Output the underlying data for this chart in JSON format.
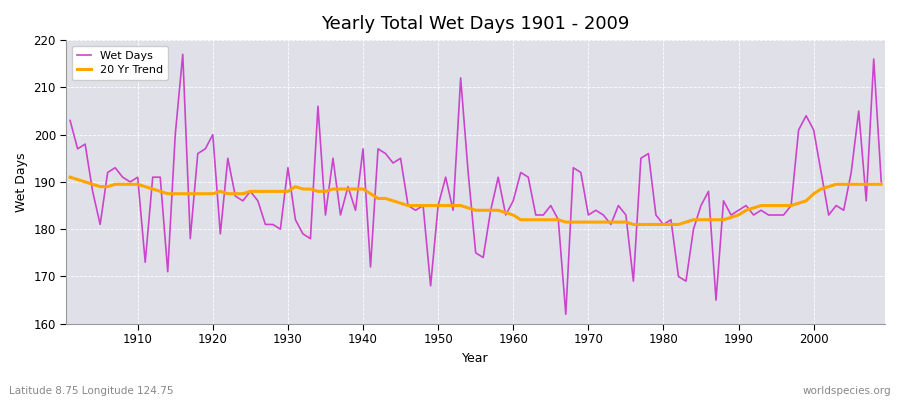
{
  "title": "Yearly Total Wet Days 1901 - 2009",
  "xlabel": "Year",
  "ylabel": "Wet Days",
  "subtitle": "Latitude 8.75 Longitude 124.75",
  "watermark": "worldspecies.org",
  "line_color": "#CC44CC",
  "trend_color": "#FFA500",
  "bg_color": "#E0E0E8",
  "fig_bg_color": "#FFFFFF",
  "ylim": [
    160,
    220
  ],
  "xlim": [
    1901,
    2009
  ],
  "years": [
    1901,
    1902,
    1903,
    1904,
    1905,
    1906,
    1907,
    1908,
    1909,
    1910,
    1911,
    1912,
    1913,
    1914,
    1915,
    1916,
    1917,
    1918,
    1919,
    1920,
    1921,
    1922,
    1923,
    1924,
    1925,
    1926,
    1927,
    1928,
    1929,
    1930,
    1931,
    1932,
    1933,
    1934,
    1935,
    1936,
    1937,
    1938,
    1939,
    1940,
    1941,
    1942,
    1943,
    1944,
    1945,
    1946,
    1947,
    1948,
    1949,
    1950,
    1951,
    1952,
    1953,
    1954,
    1955,
    1956,
    1957,
    1958,
    1959,
    1960,
    1961,
    1962,
    1963,
    1964,
    1965,
    1966,
    1967,
    1968,
    1969,
    1970,
    1971,
    1972,
    1973,
    1974,
    1975,
    1976,
    1977,
    1978,
    1979,
    1980,
    1981,
    1982,
    1983,
    1984,
    1985,
    1986,
    1987,
    1988,
    1989,
    1990,
    1991,
    1992,
    1993,
    1994,
    1995,
    1996,
    1997,
    1998,
    1999,
    2000,
    2001,
    2002,
    2003,
    2004,
    2005,
    2006,
    2007,
    2008,
    2009
  ],
  "wet_days": [
    203,
    197,
    198,
    188,
    181,
    192,
    193,
    191,
    190,
    191,
    173,
    191,
    191,
    171,
    200,
    217,
    178,
    196,
    197,
    200,
    179,
    195,
    187,
    186,
    188,
    186,
    181,
    181,
    180,
    193,
    182,
    179,
    178,
    206,
    183,
    195,
    183,
    189,
    184,
    197,
    172,
    197,
    196,
    194,
    195,
    185,
    184,
    185,
    168,
    185,
    191,
    184,
    212,
    192,
    175,
    174,
    184,
    191,
    183,
    186,
    192,
    191,
    183,
    183,
    185,
    182,
    162,
    193,
    192,
    183,
    184,
    183,
    181,
    185,
    183,
    169,
    195,
    196,
    183,
    181,
    182,
    170,
    169,
    180,
    185,
    188,
    165,
    186,
    183,
    184,
    185,
    183,
    184,
    183,
    183,
    183,
    185,
    201,
    204,
    201,
    192,
    183,
    185,
    184,
    192,
    205,
    186,
    216,
    190
  ],
  "trend_values": [
    191.0,
    190.5,
    190.0,
    189.5,
    189.0,
    189.0,
    189.5,
    189.5,
    189.5,
    189.5,
    189.0,
    188.5,
    188.0,
    187.5,
    187.5,
    187.5,
    187.5,
    187.5,
    187.5,
    187.5,
    188.0,
    187.5,
    187.5,
    187.5,
    188.0,
    188.0,
    188.0,
    188.0,
    188.0,
    188.0,
    189.0,
    188.5,
    188.5,
    188.0,
    188.0,
    188.5,
    188.5,
    188.5,
    188.5,
    188.5,
    187.5,
    186.5,
    186.5,
    186.0,
    185.5,
    185.0,
    185.0,
    185.0,
    185.0,
    185.0,
    185.0,
    185.0,
    185.0,
    184.5,
    184.0,
    184.0,
    184.0,
    184.0,
    183.5,
    183.0,
    182.0,
    182.0,
    182.0,
    182.0,
    182.0,
    182.0,
    181.5,
    181.5,
    181.5,
    181.5,
    181.5,
    181.5,
    181.5,
    181.5,
    181.5,
    181.0,
    181.0,
    181.0,
    181.0,
    181.0,
    181.0,
    181.0,
    181.5,
    182.0,
    182.0,
    182.0,
    182.0,
    182.0,
    182.5,
    183.0,
    184.0,
    184.5,
    185.0,
    185.0,
    185.0,
    185.0,
    185.0,
    185.5,
    186.0,
    187.5,
    188.5,
    189.0,
    189.5,
    189.5,
    189.5,
    189.5,
    189.5,
    189.5,
    189.5
  ]
}
